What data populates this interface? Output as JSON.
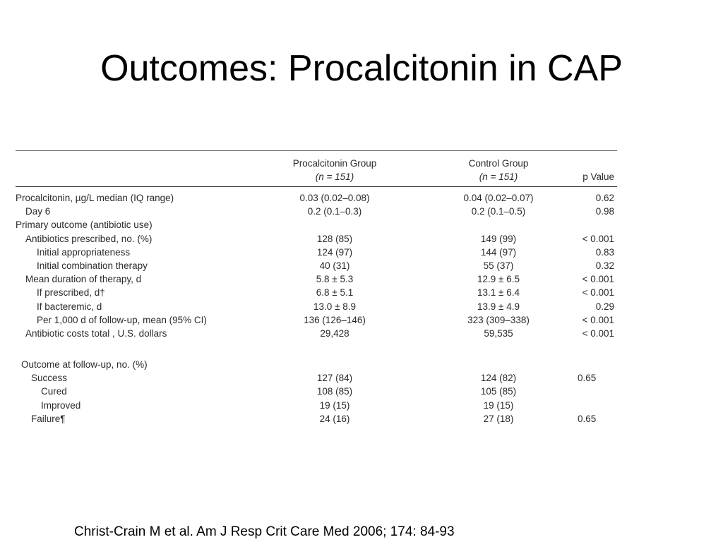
{
  "title": "Outcomes: Procalcitonin in CAP",
  "table": {
    "headers": {
      "group1_line1": "Procalcitonin Group",
      "group1_line2": "(n = 151)",
      "group2_line1": "Control Group",
      "group2_line2": "(n = 151)",
      "pvalue": "p Value"
    },
    "rows": [
      {
        "label": "Procalcitonin, µg/L median (IQ range)",
        "pct": "0.03 (0.02–0.08)",
        "ctrl": "0.04 (0.02–0.07)",
        "p": "0.62"
      },
      {
        "label": "Day 6",
        "pct": "0.2 (0.1–0.3)",
        "ctrl": "0.2 (0.1–0.5)",
        "p": "0.98"
      },
      {
        "label": "Primary outcome (antibiotic use)",
        "pct": "",
        "ctrl": "",
        "p": ""
      },
      {
        "label": "Antibiotics prescribed, no. (%)",
        "pct": "128 (85)",
        "ctrl": "149 (99)",
        "p": "< 0.001"
      },
      {
        "label": "Initial appropriateness",
        "pct": "124 (97)",
        "ctrl": "144 (97)",
        "p": "0.83"
      },
      {
        "label": "Initial combination therapy",
        "pct": "40 (31)",
        "ctrl": "55 (37)",
        "p": "0.32"
      },
      {
        "label": "Mean duration of therapy, d",
        "pct": "5.8 ± 5.3",
        "ctrl": "12.9 ± 6.5",
        "p": "< 0.001"
      },
      {
        "label": "If prescribed, d†",
        "pct": "6.8 ± 5.1",
        "ctrl": "13.1 ± 6.4",
        "p": "< 0.001"
      },
      {
        "label": "If bacteremic, d",
        "pct": "13.0 ± 8.9",
        "ctrl": "13.9 ± 4.9",
        "p": "0.29"
      },
      {
        "label": "Per 1,000 d of follow-up, mean (95% CI)",
        "pct": "136 (126–146)",
        "ctrl": "323 (309–338)",
        "p": "< 0.001"
      },
      {
        "label": "Antibiotic costs total , U.S. dollars",
        "pct": "29,428",
        "ctrl": "59,535",
        "p": "< 0.001"
      }
    ],
    "followup": [
      {
        "label": "Outcome at follow-up, no. (%)",
        "pct": "",
        "ctrl": "",
        "p": ""
      },
      {
        "label": "Success",
        "pct": "127 (84)",
        "ctrl": "124 (82)",
        "p": "0.65"
      },
      {
        "label": "Cured",
        "pct": "108 (85)",
        "ctrl": "105 (85)",
        "p": ""
      },
      {
        "label": "Improved",
        "pct": "19 (15)",
        "ctrl": "19 (15)",
        "p": ""
      },
      {
        "label": "Failure¶",
        "pct": "24 (16)",
        "ctrl": "27 (18)",
        "p": "0.65"
      }
    ]
  },
  "citation": "Christ-Crain M et al. Am J Resp Crit Care Med 2006; 174: 84-93"
}
